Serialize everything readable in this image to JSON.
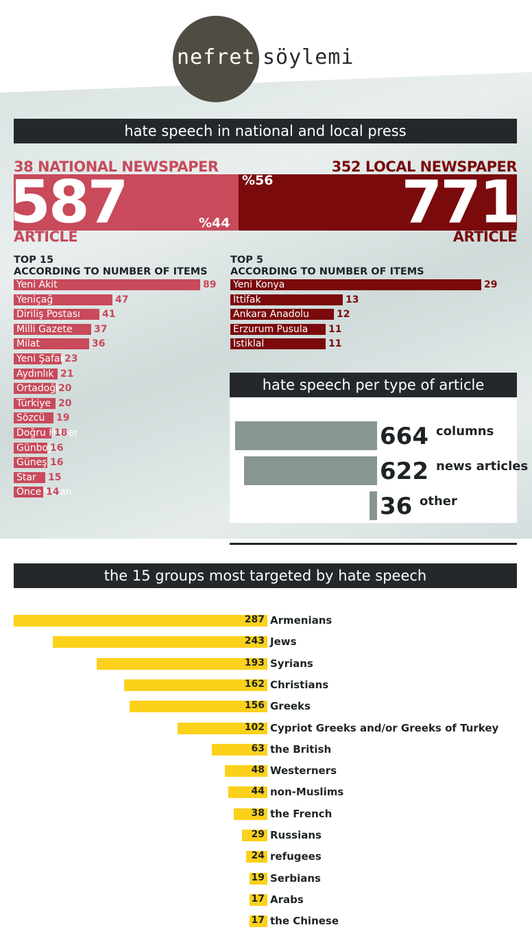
{
  "logo": {
    "word1": "nefret",
    "word2": "söylemi"
  },
  "banner1": "hate speech in national and local press",
  "national": {
    "header": "38 NATIONAL NEWSPAPER",
    "count": "587",
    "unit": "ARTICLE",
    "percent": "%44"
  },
  "local": {
    "header": "352 LOCAL NEWSPAPER",
    "count": "771",
    "unit": "ARTICLE",
    "percent": "%56"
  },
  "top15": {
    "title": "TOP 15",
    "subtitle": "ACCORDING TO NUMBER OF ITEMS"
  },
  "top5": {
    "title": "TOP 5",
    "subtitle": "ACCORDING TO NUMBER OF ITEMS"
  },
  "types_banner": "hate speech per type of article",
  "groups_banner": "the 15 groups most targeted by hate speech",
  "colors": {
    "national": "#c84a5b",
    "local": "#7a0a0c",
    "types": "#879593",
    "groups": "#fbd11b",
    "banner": "#24282b"
  },
  "chart_data": [
    {
      "type": "bar",
      "title": "TOP 15",
      "subtitle": "ACCORDING TO NUMBER OF ITEMS",
      "categories": [
        "Yeni Akit",
        "Yeniçağ",
        "Diriliş Postası",
        "Milli Gazete",
        "Milat",
        "Yeni Şafak",
        "Aydınlık",
        "Ortadoğu",
        "Türkiye",
        "Sözcü",
        "Doğru Haber",
        "Günboyu",
        "Güneş",
        "Star",
        "Önce Vatan"
      ],
      "values": [
        89,
        47,
        41,
        37,
        36,
        23,
        21,
        20,
        20,
        19,
        18,
        16,
        16,
        15,
        14
      ]
    },
    {
      "type": "bar",
      "title": "TOP 5",
      "subtitle": "ACCORDING TO NUMBER OF ITEMS",
      "categories": [
        "Yeni Konya",
        "İttifak",
        "Ankara Anadolu",
        "Erzurum Pusula",
        "İstiklal"
      ],
      "values": [
        29,
        13,
        12,
        11,
        11
      ]
    },
    {
      "type": "bar",
      "title": "hate speech per type of article",
      "categories": [
        "columns",
        "news articles",
        "other"
      ],
      "values": [
        664,
        622,
        36
      ]
    },
    {
      "type": "bar",
      "title": "the 15 groups most targeted by hate speech",
      "categories": [
        "Armenians",
        "Jews",
        "Syrians",
        "Christians",
        "Greeks",
        "Cypriot Greeks and/or Greeks of Turkey",
        "the British",
        "Westerners",
        "non-Muslims",
        "the French",
        "Russians",
        "refugees",
        "Serbians",
        "Arabs",
        "the Chinese"
      ],
      "values": [
        287,
        243,
        193,
        162,
        156,
        102,
        63,
        48,
        44,
        38,
        29,
        24,
        19,
        17,
        17
      ]
    }
  ]
}
